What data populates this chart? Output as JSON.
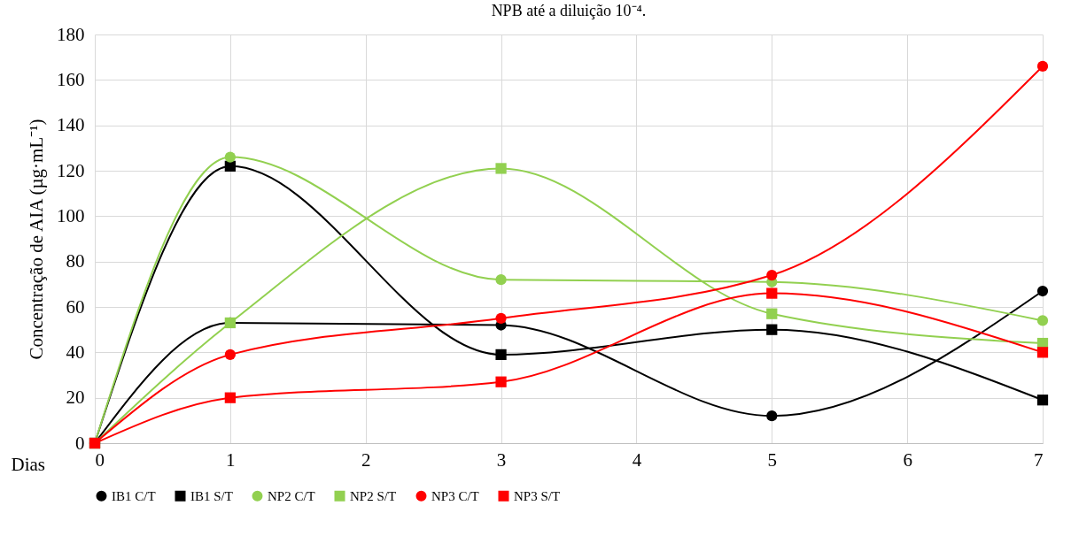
{
  "chart_data": {
    "type": "line",
    "title": "NPB até a diluição 10⁻⁴.",
    "xlabel": "Dias",
    "ylabel": "Concentração de AIA (µg·mL⁻¹)",
    "x": [
      0,
      1,
      3,
      5,
      7
    ],
    "series": [
      {
        "name": "IB1 C/T",
        "color": "#000000",
        "marker": "circle",
        "values": [
          0,
          53,
          52,
          12,
          67
        ]
      },
      {
        "name": "IB1 S/T",
        "color": "#000000",
        "marker": "square",
        "values": [
          0,
          122,
          39,
          50,
          19
        ]
      },
      {
        "name": "NP2 C/T",
        "color": "#92d050",
        "marker": "circle",
        "values": [
          0,
          126,
          72,
          71,
          54
        ]
      },
      {
        "name": "NP2 S/T",
        "color": "#92d050",
        "marker": "square",
        "values": [
          0,
          53,
          121,
          57,
          44
        ]
      },
      {
        "name": "NP3 C/T",
        "color": "#ff0000",
        "marker": "circle",
        "values": [
          0,
          39,
          55,
          74,
          166
        ]
      },
      {
        "name": "NP3 S/T",
        "color": "#ff0000",
        "marker": "square",
        "values": [
          0,
          20,
          27,
          66,
          40
        ]
      }
    ],
    "xlim": [
      0,
      7
    ],
    "xticks": [
      0,
      1,
      2,
      3,
      4,
      5,
      6,
      7
    ],
    "ylim": [
      0,
      180
    ],
    "yticks": [
      0,
      20,
      40,
      60,
      80,
      100,
      120,
      140,
      160,
      180
    ],
    "grid": true,
    "legend": "bottom"
  }
}
